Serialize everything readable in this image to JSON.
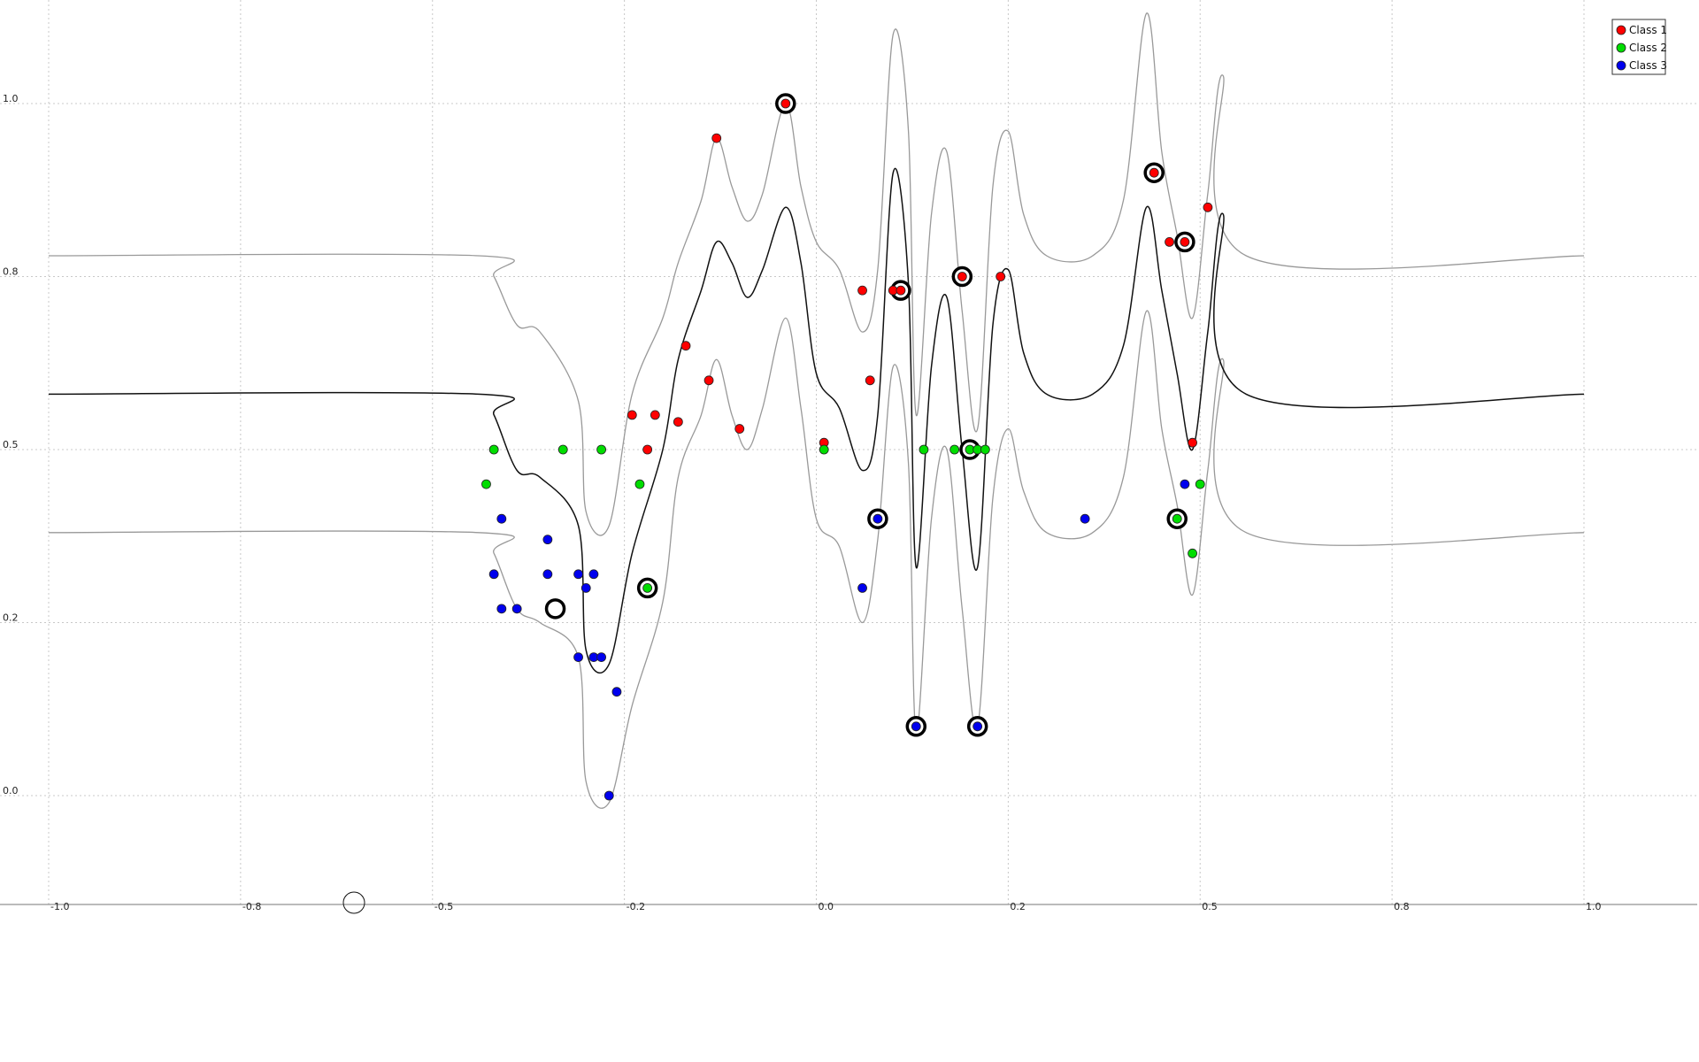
{
  "chart_data": {
    "type": "scatter",
    "title": "",
    "xlabel": "",
    "ylabel": "",
    "xlim": [
      -1.0,
      1.0
    ],
    "ylim": [
      -0.15,
      1.15
    ],
    "x_ticks": [
      -1.0,
      -0.75,
      -0.5,
      -0.25,
      0.0,
      0.25,
      0.5,
      0.75,
      1.0
    ],
    "x_tick_labels": [
      "-1.0",
      "-0.8",
      "-0.5",
      "-0.2",
      "0.0",
      "0.2",
      "0.5",
      "0.8",
      "1.0"
    ],
    "y_ticks": [
      0.0,
      0.25,
      0.5,
      0.75,
      1.0
    ],
    "y_tick_labels": [
      "0.0",
      "0.2",
      "0.5",
      "0.8",
      "1.0"
    ],
    "grid": true,
    "legend_position": "top-right",
    "colors": {
      "Class 1": "#ff0000",
      "Class 2": "#00dd00",
      "Class 3": "#0000ee",
      "mean_curve": "#111111",
      "band_curve": "#999999"
    },
    "series": [
      {
        "name": "Class 1",
        "points": [
          [
            -0.13,
            0.95
          ],
          [
            -0.04,
            1.0
          ],
          [
            -0.17,
            0.65
          ],
          [
            -0.18,
            0.54
          ],
          [
            -0.24,
            0.55
          ],
          [
            -0.14,
            0.6
          ],
          [
            -0.21,
            0.55
          ],
          [
            -0.1,
            0.53
          ],
          [
            -0.22,
            0.5
          ],
          [
            0.01,
            0.51
          ],
          [
            0.06,
            0.73
          ],
          [
            0.07,
            0.6
          ],
          [
            0.1,
            0.73
          ],
          [
            0.11,
            0.73
          ],
          [
            0.19,
            0.75
          ],
          [
            0.24,
            0.75
          ],
          [
            0.44,
            0.9
          ],
          [
            0.46,
            0.8
          ],
          [
            0.48,
            0.8
          ],
          [
            0.49,
            0.51
          ],
          [
            0.51,
            0.85
          ]
        ]
      },
      {
        "name": "Class 2",
        "points": [
          [
            -0.42,
            0.5
          ],
          [
            -0.43,
            0.45
          ],
          [
            -0.33,
            0.5
          ],
          [
            -0.28,
            0.5
          ],
          [
            -0.23,
            0.45
          ],
          [
            -0.22,
            0.3
          ],
          [
            0.01,
            0.5
          ],
          [
            0.14,
            0.5
          ],
          [
            0.18,
            0.5
          ],
          [
            0.2,
            0.5
          ],
          [
            0.21,
            0.5
          ],
          [
            0.22,
            0.5
          ],
          [
            0.47,
            0.4
          ],
          [
            0.49,
            0.35
          ],
          [
            0.5,
            0.45
          ]
        ]
      },
      {
        "name": "Class 3",
        "points": [
          [
            -0.39,
            0.27
          ],
          [
            -0.41,
            0.4
          ],
          [
            -0.42,
            0.32
          ],
          [
            -0.41,
            0.27
          ],
          [
            -0.35,
            0.37
          ],
          [
            -0.35,
            0.32
          ],
          [
            -0.31,
            0.32
          ],
          [
            -0.3,
            0.3
          ],
          [
            -0.29,
            0.32
          ],
          [
            -0.31,
            0.2
          ],
          [
            -0.29,
            0.2
          ],
          [
            -0.28,
            0.2
          ],
          [
            -0.26,
            0.15
          ],
          [
            -0.27,
            0.0
          ],
          [
            0.06,
            0.3
          ],
          [
            0.08,
            0.4
          ],
          [
            0.13,
            0.1
          ],
          [
            0.21,
            0.1
          ],
          [
            0.35,
            0.4
          ],
          [
            0.48,
            0.45
          ]
        ]
      }
    ],
    "highlighted_points": [
      [
        -0.04,
        1.0
      ],
      [
        0.11,
        0.73
      ],
      [
        0.19,
        0.75
      ],
      [
        0.44,
        0.9
      ],
      [
        0.48,
        0.8
      ],
      [
        -0.22,
        0.3
      ],
      [
        0.2,
        0.5
      ],
      [
        0.47,
        0.4
      ],
      [
        -0.34,
        0.27
      ],
      [
        0.08,
        0.4
      ],
      [
        0.13,
        0.1
      ],
      [
        0.21,
        0.1
      ]
    ],
    "curves": {
      "mean": [
        [
          -1.0,
          0.58
        ],
        [
          -0.44,
          0.58
        ],
        [
          -0.42,
          0.55
        ],
        [
          -0.39,
          0.47
        ],
        [
          -0.36,
          0.46
        ],
        [
          -0.31,
          0.39
        ],
        [
          -0.3,
          0.21
        ],
        [
          -0.27,
          0.19
        ],
        [
          -0.24,
          0.35
        ],
        [
          -0.2,
          0.5
        ],
        [
          -0.18,
          0.63
        ],
        [
          -0.15,
          0.73
        ],
        [
          -0.13,
          0.8
        ],
        [
          -0.11,
          0.77
        ],
        [
          -0.09,
          0.72
        ],
        [
          -0.07,
          0.76
        ],
        [
          -0.04,
          0.85
        ],
        [
          -0.02,
          0.77
        ],
        [
          0.0,
          0.61
        ],
        [
          0.03,
          0.56
        ],
        [
          0.06,
          0.47
        ],
        [
          0.08,
          0.55
        ],
        [
          0.1,
          0.9
        ],
        [
          0.12,
          0.74
        ],
        [
          0.13,
          0.33
        ],
        [
          0.15,
          0.62
        ],
        [
          0.17,
          0.72
        ],
        [
          0.19,
          0.5
        ],
        [
          0.21,
          0.33
        ],
        [
          0.23,
          0.68
        ],
        [
          0.25,
          0.76
        ],
        [
          0.27,
          0.64
        ],
        [
          0.3,
          0.58
        ],
        [
          0.36,
          0.58
        ],
        [
          0.4,
          0.65
        ],
        [
          0.43,
          0.85
        ],
        [
          0.45,
          0.73
        ],
        [
          0.47,
          0.61
        ],
        [
          0.49,
          0.5
        ],
        [
          0.51,
          0.67
        ],
        [
          0.53,
          0.84
        ],
        [
          0.56,
          0.58
        ],
        [
          1.0,
          0.58
        ]
      ],
      "upper": [
        [
          -1.0,
          0.78
        ],
        [
          -0.44,
          0.78
        ],
        [
          -0.42,
          0.75
        ],
        [
          -0.39,
          0.68
        ],
        [
          -0.36,
          0.67
        ],
        [
          -0.31,
          0.57
        ],
        [
          -0.3,
          0.41
        ],
        [
          -0.27,
          0.39
        ],
        [
          -0.24,
          0.58
        ],
        [
          -0.2,
          0.69
        ],
        [
          -0.18,
          0.77
        ],
        [
          -0.15,
          0.86
        ],
        [
          -0.13,
          0.95
        ],
        [
          -0.11,
          0.88
        ],
        [
          -0.09,
          0.83
        ],
        [
          -0.07,
          0.87
        ],
        [
          -0.04,
          1.0
        ],
        [
          -0.02,
          0.88
        ],
        [
          0.0,
          0.8
        ],
        [
          0.03,
          0.76
        ],
        [
          0.06,
          0.67
        ],
        [
          0.08,
          0.76
        ],
        [
          0.1,
          1.1
        ],
        [
          0.12,
          0.96
        ],
        [
          0.13,
          0.55
        ],
        [
          0.15,
          0.84
        ],
        [
          0.17,
          0.93
        ],
        [
          0.19,
          0.7
        ],
        [
          0.21,
          0.53
        ],
        [
          0.23,
          0.88
        ],
        [
          0.25,
          0.96
        ],
        [
          0.27,
          0.84
        ],
        [
          0.3,
          0.78
        ],
        [
          0.36,
          0.78
        ],
        [
          0.4,
          0.86
        ],
        [
          0.43,
          1.13
        ],
        [
          0.45,
          0.93
        ],
        [
          0.47,
          0.81
        ],
        [
          0.49,
          0.69
        ],
        [
          0.51,
          0.87
        ],
        [
          0.53,
          1.04
        ],
        [
          0.56,
          0.78
        ],
        [
          1.0,
          0.78
        ]
      ],
      "lower": [
        [
          -1.0,
          0.38
        ],
        [
          -0.44,
          0.38
        ],
        [
          -0.42,
          0.35
        ],
        [
          -0.39,
          0.27
        ],
        [
          -0.36,
          0.25
        ],
        [
          -0.31,
          0.2
        ],
        [
          -0.3,
          0.02
        ],
        [
          -0.27,
          -0.01
        ],
        [
          -0.24,
          0.13
        ],
        [
          -0.2,
          0.28
        ],
        [
          -0.18,
          0.46
        ],
        [
          -0.15,
          0.55
        ],
        [
          -0.13,
          0.63
        ],
        [
          -0.11,
          0.55
        ],
        [
          -0.09,
          0.5
        ],
        [
          -0.07,
          0.56
        ],
        [
          -0.04,
          0.69
        ],
        [
          -0.02,
          0.56
        ],
        [
          0.0,
          0.4
        ],
        [
          0.03,
          0.36
        ],
        [
          0.06,
          0.25
        ],
        [
          0.08,
          0.37
        ],
        [
          0.1,
          0.62
        ],
        [
          0.12,
          0.48
        ],
        [
          0.13,
          0.09
        ],
        [
          0.15,
          0.4
        ],
        [
          0.17,
          0.5
        ],
        [
          0.19,
          0.27
        ],
        [
          0.21,
          0.1
        ],
        [
          0.23,
          0.43
        ],
        [
          0.25,
          0.53
        ],
        [
          0.27,
          0.44
        ],
        [
          0.3,
          0.38
        ],
        [
          0.36,
          0.38
        ],
        [
          0.4,
          0.46
        ],
        [
          0.43,
          0.7
        ],
        [
          0.45,
          0.53
        ],
        [
          0.47,
          0.42
        ],
        [
          0.49,
          0.29
        ],
        [
          0.51,
          0.47
        ],
        [
          0.53,
          0.63
        ],
        [
          0.56,
          0.38
        ],
        [
          1.0,
          0.38
        ]
      ]
    }
  }
}
